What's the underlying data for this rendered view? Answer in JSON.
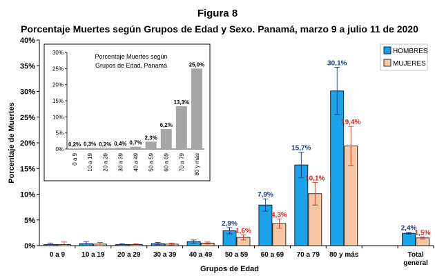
{
  "figure_label": "Figura 8",
  "chart_data": [
    {
      "type": "bar",
      "title": "Porcentaje Muertes según Grupos de Edad y Sexo. Panamá, marzo 9 a julio 11 de 2020",
      "xlabel": "Grupos de Edad",
      "ylabel": "Porcentaje de Muertes",
      "ylim": [
        0,
        40
      ],
      "yticks": [
        "0%",
        "5%",
        "10%",
        "15%",
        "20%",
        "25%",
        "30%",
        "35%",
        "40%"
      ],
      "categories": [
        "0 a 9",
        "10 a 19",
        "20 a 29",
        "30 a 39",
        "40 a 49",
        "50 a 59",
        "60 a 69",
        "70 a 79",
        "80 y más",
        "",
        "Total general"
      ],
      "series": [
        {
          "name": "HOMBRES",
          "color": "#1aa3e8",
          "values": [
            0.2,
            0.4,
            0.2,
            0.4,
            0.8,
            2.9,
            7.9,
            15.7,
            30.1,
            null,
            2.4
          ],
          "error": [
            0.3,
            0.4,
            0.2,
            0.2,
            0.3,
            0.6,
            1.2,
            2.5,
            4.6,
            null,
            0.2
          ],
          "labels": [
            "",
            "",
            "",
            "",
            "",
            "2,9%",
            "7,9%",
            "15,7%",
            "30,1%",
            "",
            "2,4%"
          ],
          "label_color": "#1f3a8a"
        },
        {
          "name": "MUJERES",
          "color": "#f7c6a3",
          "values": [
            0.2,
            0.3,
            0.2,
            0.3,
            0.5,
            1.6,
            4.3,
            10.1,
            19.4,
            null,
            1.5
          ],
          "error": [
            0.5,
            0.3,
            0.2,
            0.2,
            0.2,
            0.5,
            0.9,
            2.2,
            3.8,
            null,
            0.2
          ],
          "labels": [
            "",
            "",
            "",
            "",
            "",
            "1,6%",
            "4,3%",
            "10,1%",
            "19,4%",
            "",
            "1,5%"
          ],
          "label_color": "#e02020"
        }
      ],
      "legend": "top-right",
      "grid": false
    },
    {
      "type": "bar",
      "title": "Porcentaje Muertes según Grupos de Edad, Panamá",
      "title_lines": [
        "Porcentaje Muertes según",
        "Grupos de Edad, Panamá"
      ],
      "ylim": [
        0,
        30
      ],
      "yticks": [
        "0%",
        "5%",
        "10%",
        "15%",
        "20%",
        "25%",
        "30%"
      ],
      "categories": [
        "0 a 9",
        "10 a 19",
        "20 a 29",
        "30 a 39",
        "40 a 49",
        "50 a 59",
        "60 a 69",
        "70 a 79",
        "80 y más"
      ],
      "values": [
        0.2,
        0.3,
        0.2,
        0.4,
        0.7,
        2.3,
        6.2,
        13.3,
        25.0
      ],
      "labels": [
        "0,2%",
        "0,3%",
        "0,2%",
        "0,4%",
        "0,7%",
        "2,3%",
        "6,2%",
        "13,3%",
        "25,0%"
      ],
      "color": "#a6a6a6",
      "grid": false,
      "legend": "none"
    }
  ]
}
